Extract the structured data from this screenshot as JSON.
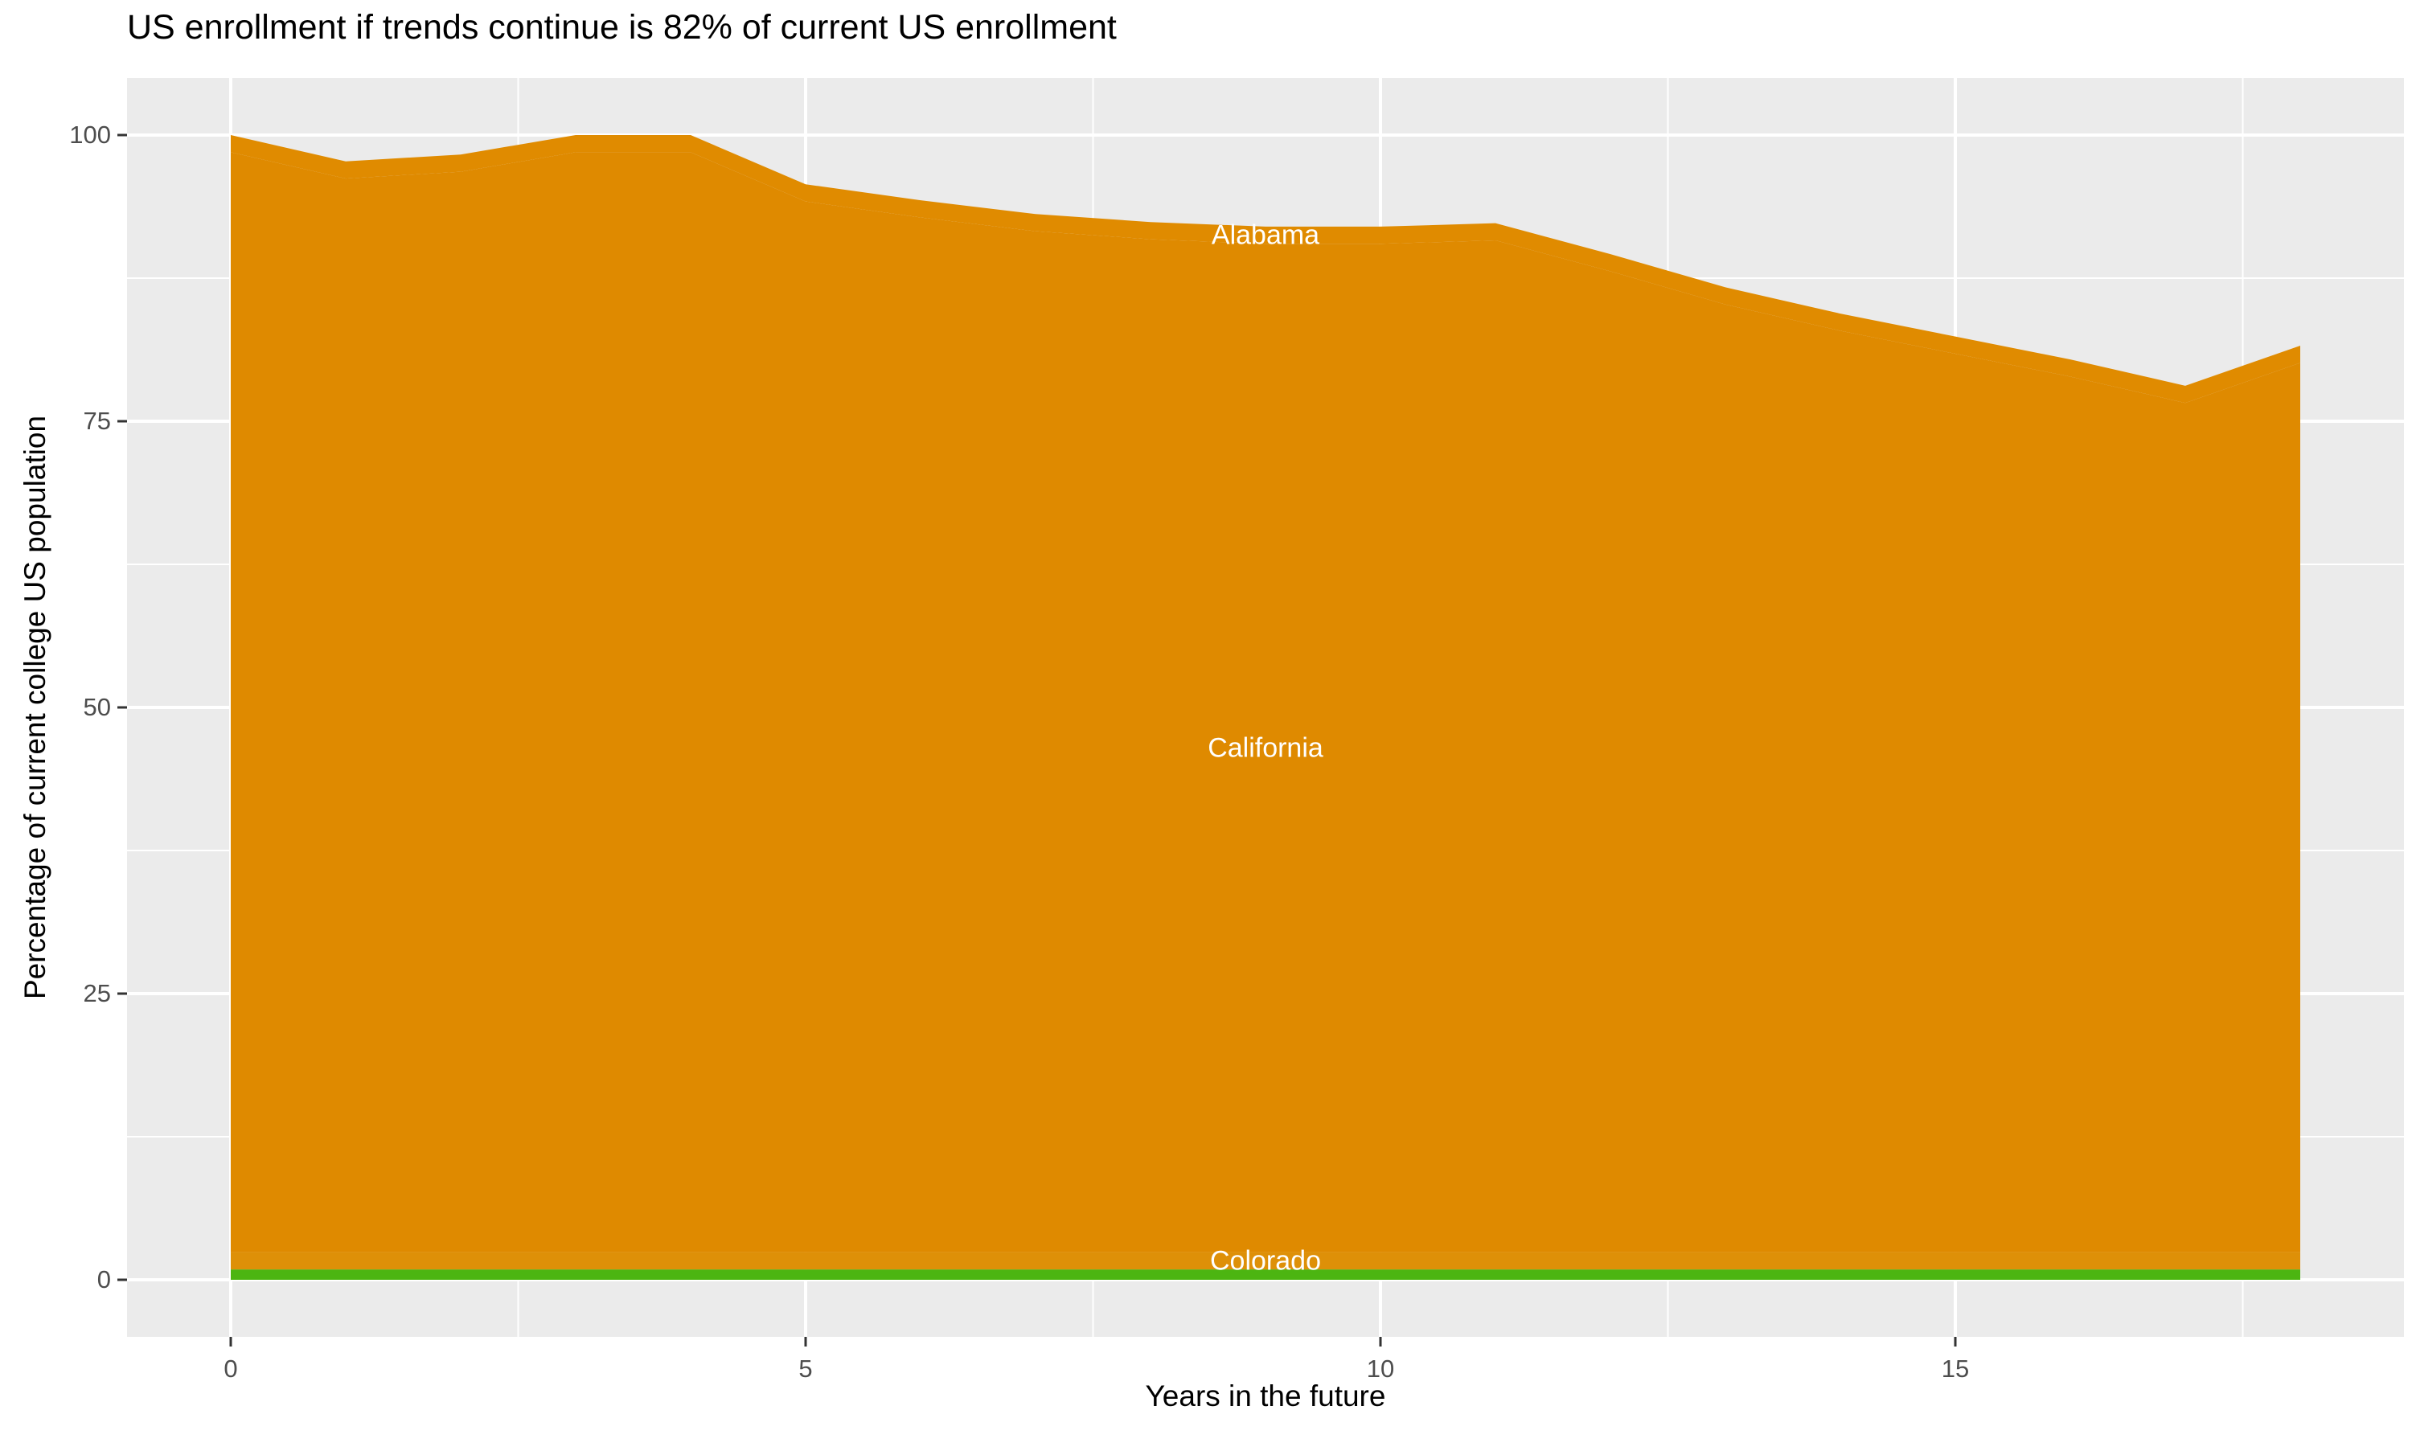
{
  "title": "US enrollment if trends continue is 82% of current US enrollment",
  "x_axis": {
    "title": "Years in the future",
    "ticks": [
      0,
      5,
      10,
      15
    ]
  },
  "y_axis": {
    "title": "Percentage of current college US population",
    "ticks": [
      0,
      25,
      50,
      75,
      100
    ]
  },
  "chart_data": {
    "type": "area",
    "stacked": true,
    "title": "US enrollment if trends continue is 82% of current US enrollment",
    "xlabel": "Years in the future",
    "ylabel": "Percentage of current college US population",
    "x": [
      0,
      1,
      2,
      3,
      4,
      5,
      6,
      7,
      8,
      9,
      10,
      11,
      12,
      13,
      14,
      15,
      16,
      17,
      18
    ],
    "series": [
      {
        "name": "",
        "label": null,
        "color": "#4CB511",
        "values": [
          0.9,
          0.9,
          0.9,
          0.9,
          0.9,
          0.9,
          0.9,
          0.9,
          0.9,
          0.9,
          0.9,
          0.9,
          0.9,
          0.9,
          0.9,
          0.9,
          0.9,
          0.9,
          0.9
        ]
      },
      {
        "name": "Colorado",
        "label": "Colorado",
        "color": "#DE9008",
        "values": [
          1.5,
          1.5,
          1.5,
          1.5,
          1.5,
          1.5,
          1.5,
          1.5,
          1.5,
          1.5,
          1.5,
          1.5,
          1.5,
          1.5,
          1.5,
          1.5,
          1.5,
          1.5,
          1.5
        ]
      },
      {
        "name": "California",
        "label": "California",
        "color": "#DF8A00",
        "values": [
          96.1,
          93.8,
          94.4,
          96.1,
          96.1,
          91.8,
          90.4,
          89.2,
          88.5,
          88.1,
          88.1,
          88.4,
          85.7,
          82.8,
          80.5,
          78.5,
          76.5,
          74.2,
          77.7
        ]
      },
      {
        "name": "Alabama",
        "label": "Alabama",
        "color": "#E08B00",
        "values": [
          1.5,
          1.5,
          1.5,
          1.5,
          1.5,
          1.5,
          1.5,
          1.5,
          1.5,
          1.5,
          1.5,
          1.5,
          1.5,
          1.5,
          1.5,
          1.5,
          1.5,
          1.5,
          1.5
        ]
      }
    ],
    "stack_totals": [
      100,
      97.7,
      98.3,
      100,
      100,
      95.7,
      94.3,
      93.1,
      92.4,
      92.0,
      92.0,
      92.3,
      89.6,
      86.7,
      84.4,
      82.4,
      80.4,
      78.1,
      81.6
    ],
    "label_x": 9,
    "x_range_shown": [
      -0.9,
      18.9
    ],
    "y_range_shown": [
      -5,
      105
    ],
    "grid": {
      "x_major": [
        0,
        5,
        10,
        15
      ],
      "x_minor": [
        2.5,
        7.5,
        12.5,
        17.5
      ],
      "y_major": [
        0,
        25,
        50,
        75,
        100
      ],
      "y_minor": [
        12.5,
        37.5,
        62.5,
        87.5
      ]
    },
    "legend": "none",
    "colors": {
      "panel_background": "#EBEBEB",
      "gridline": "#FFFFFF",
      "area_label_text": "#FFFFFF",
      "tick_text": "#4D4D4D",
      "axis_text": "#000000"
    }
  }
}
